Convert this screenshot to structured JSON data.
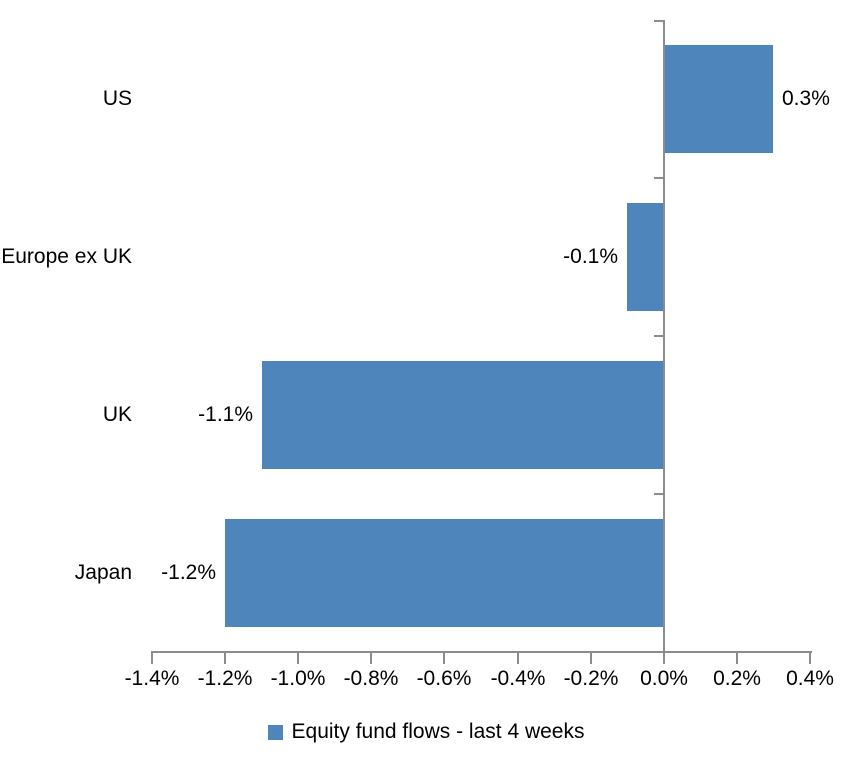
{
  "chart_data": {
    "type": "bar",
    "orientation": "horizontal",
    "title": "",
    "categories": [
      "US",
      "Europe ex UK",
      "UK",
      "Japan"
    ],
    "values": [
      0.3,
      -0.1,
      -1.1,
      -1.2
    ],
    "data_labels": [
      "0.3%",
      "-0.1%",
      "-1.1%",
      "-1.2%"
    ],
    "x_tick_labels": [
      "-1.4%",
      "-1.2%",
      "-1.0%",
      "-0.8%",
      "-0.6%",
      "-0.4%",
      "-0.2%",
      "0.0%",
      "0.2%",
      "0.4%"
    ],
    "xlim": [
      -1.4,
      0.4
    ],
    "x_tick_step": 0.2,
    "grid": "off",
    "legend_label": "Equity fund flows - last 4 weeks",
    "legend_position": "bottom",
    "colors": {
      "bar": "#4e86bb",
      "axis": "#8c8c8c",
      "text": "#000000",
      "background": "#ffffff"
    }
  }
}
